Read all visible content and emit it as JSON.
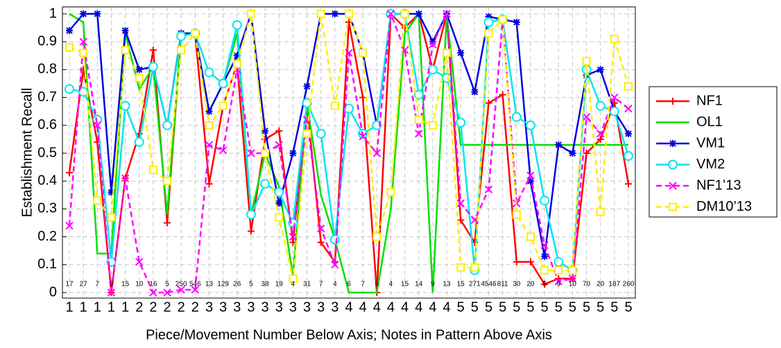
{
  "chart_data": {
    "type": "line",
    "ylabel": "Establishment Recall",
    "xlabel": "Piece/Movement Number Below Axis; Notes in Pattern Above Axis",
    "categories": [
      "1",
      "1",
      "1",
      "1",
      "1",
      "2",
      "2",
      "2",
      "2",
      "2",
      "3",
      "3",
      "3",
      "3",
      "3",
      "3",
      "3",
      "3",
      "3",
      "3",
      "4",
      "4",
      "4",
      "4",
      "4",
      "4",
      "4",
      "4",
      "5",
      "5",
      "5",
      "5",
      "5",
      "5",
      "5",
      "5",
      "5",
      "5",
      "5",
      "5",
      "5"
    ],
    "notes": [
      "17",
      "27",
      "7",
      "9",
      "15",
      "10",
      "16",
      "5",
      "250",
      "546",
      "13",
      "129",
      "26",
      "5",
      "38",
      "19",
      "4",
      "31",
      "7",
      "4",
      "6",
      "7",
      "5",
      "4",
      "15",
      "14",
      "9",
      "13",
      "15",
      "271",
      "4546",
      "811",
      "30",
      "20",
      "5",
      "9",
      "10",
      "70",
      "20",
      "187",
      "260"
    ],
    "ylim": [
      0,
      1
    ],
    "yticks": [
      0,
      0.1,
      0.2,
      0.3,
      0.4,
      0.5,
      0.6,
      0.7,
      0.8,
      0.9,
      1
    ],
    "grid": true,
    "legend": "right",
    "series": [
      {
        "name": "NF1",
        "color": "#ff0000",
        "marker": "plus",
        "dash": false,
        "values": [
          0.43,
          0.8,
          0.54,
          0.0,
          0.41,
          0.57,
          0.87,
          0.25,
          0.93,
          0.93,
          0.39,
          0.67,
          0.82,
          0.22,
          0.55,
          0.58,
          0.18,
          0.67,
          0.18,
          0.11,
          0.97,
          0.7,
          0.0,
          1.0,
          0.95,
          1.0,
          0.8,
          1.0,
          0.26,
          0.18,
          0.68,
          0.71,
          0.11,
          0.11,
          0.03,
          0.05,
          0.05,
          0.5,
          0.55,
          0.68,
          0.39
        ]
      },
      {
        "name": "OL1",
        "color": "#00e000",
        "marker": "none",
        "dash": false,
        "values": [
          1.0,
          0.97,
          0.14,
          0.14,
          0.93,
          0.73,
          0.81,
          0.28,
          0.93,
          0.93,
          0.65,
          0.75,
          0.93,
          0.28,
          0.5,
          0.38,
          0.06,
          0.68,
          0.35,
          0.19,
          0.0,
          0.0,
          0.0,
          0.3,
          0.93,
          1.0,
          0.0,
          1.0,
          0.53,
          0.53,
          0.53,
          0.53,
          0.53,
          0.53,
          0.53,
          0.53,
          0.53,
          0.53,
          0.53,
          0.53,
          0.53
        ]
      },
      {
        "name": "VM1",
        "color": "#0000e0",
        "marker": "star",
        "dash": false,
        "values": [
          0.94,
          1.0,
          1.0,
          0.36,
          0.94,
          0.8,
          0.81,
          0.6,
          0.93,
          0.93,
          0.65,
          0.75,
          0.85,
          1.0,
          0.58,
          0.32,
          0.5,
          0.74,
          1.0,
          1.0,
          1.0,
          0.86,
          0.6,
          1.0,
          1.0,
          1.0,
          0.9,
          1.0,
          0.86,
          0.72,
          0.99,
          0.98,
          0.97,
          0.4,
          0.13,
          0.53,
          0.5,
          0.78,
          0.8,
          0.65,
          0.57
        ]
      },
      {
        "name": "VM2",
        "color": "#00e5ee",
        "marker": "circle",
        "dash": false,
        "values": [
          0.73,
          0.72,
          0.62,
          0.11,
          0.67,
          0.54,
          0.81,
          0.6,
          0.92,
          0.93,
          0.79,
          0.75,
          0.96,
          0.28,
          0.39,
          0.36,
          0.25,
          0.68,
          0.57,
          0.19,
          0.66,
          0.57,
          0.6,
          1.0,
          1.0,
          0.71,
          0.8,
          0.77,
          0.61,
          0.08,
          0.97,
          0.98,
          0.63,
          0.6,
          0.33,
          0.11,
          0.08,
          0.8,
          0.67,
          0.65,
          0.49
        ]
      },
      {
        "name": "NF1’13",
        "color": "#ff00ff",
        "marker": "x",
        "dash": true,
        "values": [
          0.24,
          0.9,
          0.6,
          0.0,
          0.41,
          0.11,
          0.0,
          0.0,
          0.01,
          0.01,
          0.53,
          0.51,
          0.8,
          0.5,
          0.5,
          0.53,
          0.2,
          0.62,
          0.23,
          0.1,
          0.86,
          0.56,
          0.5,
          1.0,
          0.87,
          0.57,
          0.89,
          1.0,
          0.32,
          0.26,
          0.37,
          0.98,
          0.32,
          0.42,
          0.17,
          0.04,
          0.05,
          0.63,
          0.57,
          0.7,
          0.66
        ]
      },
      {
        "name": "DM10’13",
        "color": "#ffee00",
        "marker": "square",
        "dash": true,
        "values": [
          0.88,
          0.86,
          0.33,
          0.27,
          0.87,
          0.77,
          0.44,
          0.4,
          0.87,
          0.93,
          0.6,
          0.67,
          0.82,
          1.0,
          0.5,
          0.27,
          0.05,
          0.57,
          1.0,
          0.67,
          1.0,
          0.86,
          0.2,
          0.36,
          1.0,
          0.62,
          0.6,
          0.86,
          0.09,
          0.09,
          0.93,
          0.98,
          0.28,
          0.2,
          0.08,
          0.08,
          0.08,
          0.83,
          0.29,
          0.91,
          0.74
        ]
      }
    ]
  }
}
